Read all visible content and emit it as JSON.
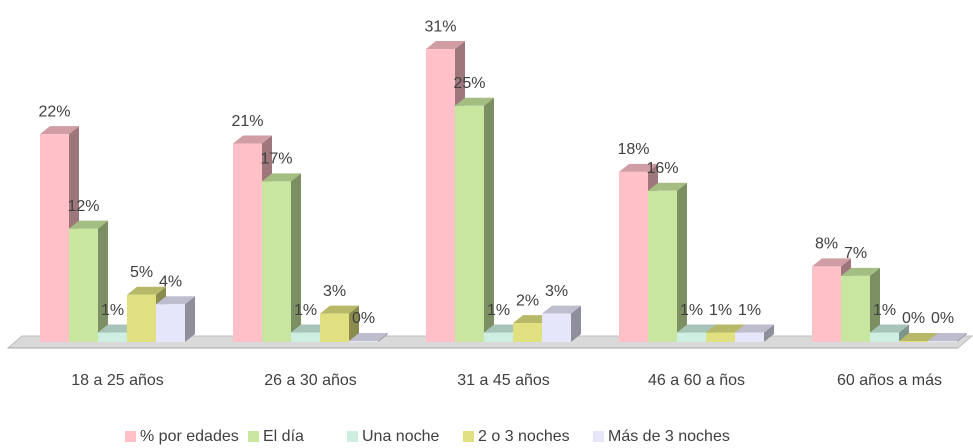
{
  "chart_data": {
    "type": "bar3d",
    "categories": [
      "18 a 25 años",
      "26 a 30 años",
      "31 a 45 años",
      "46 a 60 a ños",
      "60  años a más"
    ],
    "series": [
      {
        "name": "% por edades",
        "color": "#ffc0c8",
        "values": [
          22,
          21,
          31,
          18,
          8
        ],
        "value_labels": [
          "22%",
          "21%",
          "31%",
          "18%",
          "8%"
        ]
      },
      {
        "name": "El día",
        "color": "#c8e6a0",
        "values": [
          12,
          17,
          25,
          16,
          7
        ],
        "value_labels": [
          "12%",
          "17%",
          "25%",
          "16%",
          "7%"
        ]
      },
      {
        "name": "Una noche",
        "color": "#cdeee0",
        "values": [
          1,
          1,
          1,
          1,
          1
        ],
        "value_labels": [
          "1%",
          "1%",
          "1%",
          "1%",
          "1%"
        ]
      },
      {
        "name": "2 o 3 noches",
        "color": "#e0e080",
        "values": [
          5,
          3,
          2,
          1,
          0
        ],
        "value_labels": [
          "5%",
          "3%",
          "2%",
          "1%",
          "0%"
        ]
      },
      {
        "name": "Más de 3 noches",
        "color": "#e6e6fa",
        "values": [
          4,
          0,
          3,
          1,
          0
        ],
        "value_labels": [
          "4%",
          "0%",
          "3%",
          "1%",
          "0%"
        ]
      }
    ],
    "legend": "bottom"
  }
}
